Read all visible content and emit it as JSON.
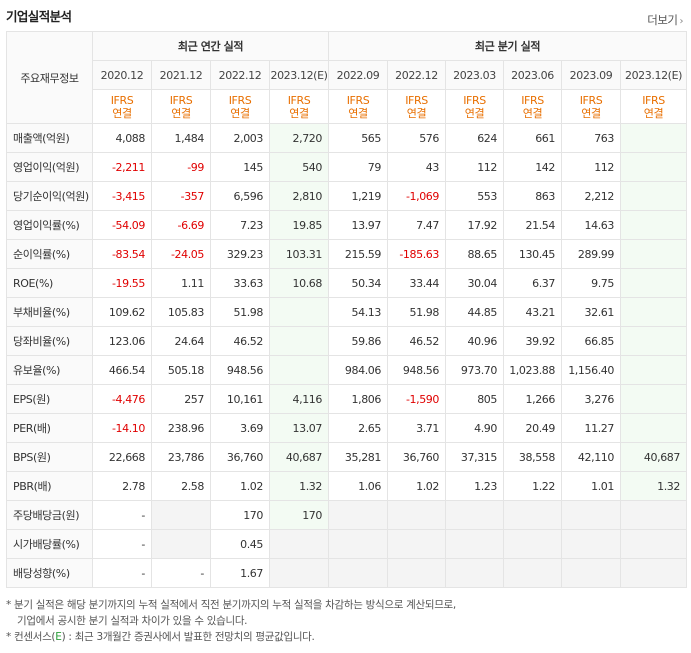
{
  "title": "기업실적분석",
  "more_label": "더보기",
  "header": {
    "row_label": "주요재무정보",
    "annual_group": "최근 연간 실적",
    "quarter_group": "최근 분기 실적",
    "periods": [
      "2020.12",
      "2021.12",
      "2022.12",
      "2023.12(E)",
      "2022.09",
      "2022.12",
      "2023.03",
      "2023.06",
      "2023.09",
      "2023.12(E)"
    ],
    "ifrs_top": "IFRS",
    "ifrs_bottom": "연결"
  },
  "rows": [
    {
      "label": "매출액(억원)",
      "values": [
        "4,088",
        "1,484",
        "2,003",
        "2,720",
        "565",
        "576",
        "624",
        "661",
        "763",
        ""
      ]
    },
    {
      "label": "영업이익(억원)",
      "values": [
        "-2,211",
        "-99",
        "145",
        "540",
        "79",
        "43",
        "112",
        "142",
        "112",
        ""
      ]
    },
    {
      "label": "당기순이익(억원)",
      "values": [
        "-3,415",
        "-357",
        "6,596",
        "2,810",
        "1,219",
        "-1,069",
        "553",
        "863",
        "2,212",
        ""
      ]
    },
    {
      "label": "영업이익률(%)",
      "values": [
        "-54.09",
        "-6.69",
        "7.23",
        "19.85",
        "13.97",
        "7.47",
        "17.92",
        "21.54",
        "14.63",
        ""
      ]
    },
    {
      "label": "순이익률(%)",
      "values": [
        "-83.54",
        "-24.05",
        "329.23",
        "103.31",
        "215.59",
        "-185.63",
        "88.65",
        "130.45",
        "289.99",
        ""
      ]
    },
    {
      "label": "ROE(%)",
      "values": [
        "-19.55",
        "1.11",
        "33.63",
        "10.68",
        "50.34",
        "33.44",
        "30.04",
        "6.37",
        "9.75",
        ""
      ]
    },
    {
      "label": "부채비율(%)",
      "values": [
        "109.62",
        "105.83",
        "51.98",
        "",
        "54.13",
        "51.98",
        "44.85",
        "43.21",
        "32.61",
        ""
      ]
    },
    {
      "label": "당좌비율(%)",
      "values": [
        "123.06",
        "24.64",
        "46.52",
        "",
        "59.86",
        "46.52",
        "40.96",
        "39.92",
        "66.85",
        ""
      ]
    },
    {
      "label": "유보율(%)",
      "values": [
        "466.54",
        "505.18",
        "948.56",
        "",
        "984.06",
        "948.56",
        "973.70",
        "1,023.88",
        "1,156.40",
        ""
      ]
    },
    {
      "label": "EPS(원)",
      "values": [
        "-4,476",
        "257",
        "10,161",
        "4,116",
        "1,806",
        "-1,590",
        "805",
        "1,266",
        "3,276",
        ""
      ]
    },
    {
      "label": "PER(배)",
      "values": [
        "-14.10",
        "238.96",
        "3.69",
        "13.07",
        "2.65",
        "3.71",
        "4.90",
        "20.49",
        "11.27",
        ""
      ]
    },
    {
      "label": "BPS(원)",
      "values": [
        "22,668",
        "23,786",
        "36,760",
        "40,687",
        "35,281",
        "36,760",
        "37,315",
        "38,558",
        "42,110",
        "40,687"
      ]
    },
    {
      "label": "PBR(배)",
      "values": [
        "2.78",
        "2.58",
        "1.02",
        "1.32",
        "1.06",
        "1.02",
        "1.23",
        "1.22",
        "1.01",
        "1.32"
      ]
    },
    {
      "label": "주당배당금(원)",
      "values": [
        "-",
        "",
        "170",
        "170",
        "",
        "",
        "",
        "",
        "",
        ""
      ]
    },
    {
      "label": "시가배당률(%)",
      "values": [
        "-",
        "",
        "0.45",
        "",
        "",
        "",
        "",
        "",
        "",
        ""
      ]
    },
    {
      "label": "배당성향(%)",
      "values": [
        "-",
        "-",
        "1.67",
        "",
        "",
        "",
        "",
        "",
        "",
        ""
      ]
    }
  ],
  "notes": {
    "line1": "* 분기 실적은 해당 분기까지의 누적 실적에서 직전 분기까지의 누적 실적을 차감하는 방식으로 계산되므로,",
    "line2": "기업에서 공시한 분기 실적과 차이가 있을 수 있습니다.",
    "line3_prefix": "* 컨센서스(",
    "line3_e": "E",
    "line3_suffix": ") : 최근 3개월간 증권사에서 발표한 전망치의 평균값입니다."
  },
  "colors": {
    "ifrs": "#e86f00",
    "negative": "#e00000",
    "estimate_bg": "#f3fbf3",
    "consensus_e": "#2b9e3a"
  }
}
